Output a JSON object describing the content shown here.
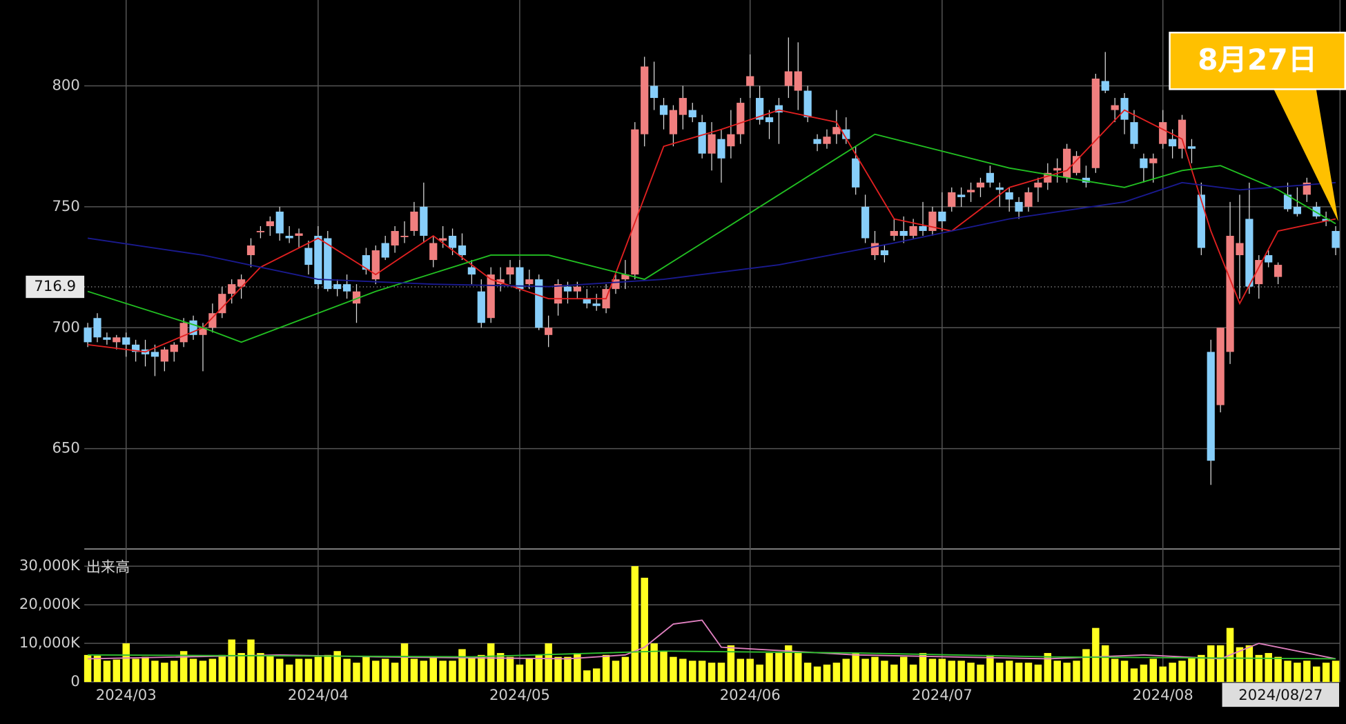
{
  "chart_data": {
    "type": "candlestick",
    "categories": [
      null,
      null,
      null,
      null,
      "2024/03",
      null,
      null,
      null,
      null,
      null,
      null,
      null,
      null,
      null,
      null,
      null,
      null,
      null,
      null,
      null,
      null,
      null,
      null,
      null,
      "2024/04",
      null,
      null,
      null,
      null,
      null,
      null,
      null,
      null,
      null,
      null,
      null,
      null,
      null,
      null,
      null,
      null,
      null,
      null,
      null,
      null,
      "2024/05",
      null,
      null,
      null,
      null,
      null,
      null,
      null,
      null,
      null,
      null,
      null,
      null,
      null,
      null,
      null,
      null,
      null,
      null,
      null,
      null,
      null,
      null,
      null,
      "2024/06",
      null,
      null,
      null,
      null,
      null,
      null,
      null,
      null,
      null,
      null,
      null,
      null,
      null,
      null,
      null,
      null,
      null,
      null,
      null,
      "2024/07",
      null,
      null,
      null,
      null,
      null,
      null,
      null,
      null,
      null,
      null,
      null,
      null,
      null,
      null,
      null,
      null,
      null,
      null,
      null,
      null,
      null,
      null,
      "2024/08",
      null,
      null,
      null,
      null,
      null,
      null,
      null,
      null,
      null,
      null,
      null,
      null,
      null,
      null,
      null,
      null,
      null,
      "2024/08/27"
    ],
    "candles": [
      [
        700,
        702,
        692,
        694
      ],
      [
        704,
        706,
        694,
        696
      ],
      [
        696,
        698,
        693,
        695
      ],
      [
        694,
        697,
        691,
        696
      ],
      [
        696,
        698,
        688,
        693
      ],
      [
        693,
        695,
        686,
        690
      ],
      [
        691,
        695,
        684,
        689
      ],
      [
        690,
        693,
        680,
        688
      ],
      [
        686,
        692,
        682,
        691
      ],
      [
        690,
        694,
        686,
        693
      ],
      [
        694,
        704,
        692,
        702
      ],
      [
        703,
        705,
        695,
        697
      ],
      [
        697,
        702,
        682,
        700
      ],
      [
        700,
        710,
        698,
        706
      ],
      [
        706,
        717,
        704,
        714
      ],
      [
        714,
        720,
        710,
        718
      ],
      [
        717,
        722,
        712,
        720
      ],
      [
        730,
        737,
        725,
        734
      ],
      [
        740,
        742,
        737,
        740
      ],
      [
        742,
        746,
        738,
        744
      ],
      [
        748,
        750,
        736,
        739
      ],
      [
        738,
        742,
        735,
        737
      ],
      [
        738,
        741,
        733,
        739
      ],
      [
        733,
        736,
        722,
        726
      ],
      [
        738,
        742,
        716,
        718
      ],
      [
        737,
        740,
        715,
        716
      ],
      [
        718,
        720,
        713,
        716
      ],
      [
        718,
        722,
        712,
        715
      ],
      [
        710,
        718,
        702,
        715
      ],
      [
        730,
        733,
        722,
        724
      ],
      [
        720,
        734,
        718,
        732
      ],
      [
        735,
        738,
        728,
        729
      ],
      [
        734,
        742,
        731,
        740
      ],
      [
        738,
        744,
        735,
        738
      ],
      [
        740,
        752,
        738,
        748
      ],
      [
        750,
        760,
        735,
        738
      ],
      [
        728,
        738,
        725,
        735
      ],
      [
        736,
        742,
        733,
        737
      ],
      [
        738,
        741,
        730,
        733
      ],
      [
        734,
        739,
        728,
        730
      ],
      [
        725,
        728,
        718,
        722
      ],
      [
        715,
        720,
        700,
        702
      ],
      [
        704,
        725,
        702,
        722
      ],
      [
        718,
        725,
        715,
        720
      ],
      [
        722,
        728,
        718,
        725
      ],
      [
        725,
        728,
        715,
        716
      ],
      [
        718,
        724,
        716,
        720
      ],
      [
        720,
        722,
        699,
        700
      ],
      [
        697,
        705,
        692,
        700
      ],
      [
        710,
        720,
        705,
        718
      ],
      [
        717,
        719,
        710,
        715
      ],
      [
        715,
        719,
        712,
        717
      ],
      [
        712,
        716,
        708,
        710
      ],
      [
        710,
        714,
        707,
        709
      ],
      [
        708,
        718,
        706,
        716
      ],
      [
        716,
        722,
        714,
        720
      ],
      [
        720,
        728,
        716,
        722
      ],
      [
        722,
        785,
        720,
        782
      ],
      [
        780,
        812,
        775,
        808
      ],
      [
        800,
        810,
        790,
        795
      ],
      [
        792,
        795,
        782,
        788
      ],
      [
        780,
        792,
        775,
        790
      ],
      [
        788,
        800,
        782,
        795
      ],
      [
        790,
        793,
        785,
        787
      ],
      [
        785,
        788,
        770,
        772
      ],
      [
        772,
        785,
        765,
        780
      ],
      [
        778,
        782,
        760,
        770
      ],
      [
        775,
        790,
        770,
        780
      ],
      [
        780,
        795,
        776,
        793
      ],
      [
        800,
        813,
        795,
        804
      ],
      [
        795,
        800,
        784,
        786
      ],
      [
        787,
        790,
        778,
        785
      ],
      [
        792,
        795,
        776,
        789
      ],
      [
        800,
        820,
        795,
        806
      ],
      [
        798,
        818,
        790,
        806
      ],
      [
        798,
        800,
        785,
        787
      ],
      [
        778,
        780,
        773,
        776
      ],
      [
        776,
        782,
        774,
        779
      ],
      [
        780,
        790,
        776,
        783
      ],
      [
        782,
        787,
        776,
        778
      ],
      [
        770,
        775,
        755,
        758
      ],
      [
        750,
        755,
        735,
        737
      ],
      [
        730,
        740,
        728,
        735
      ],
      [
        732,
        734,
        727,
        730
      ],
      [
        738,
        745,
        736,
        740
      ],
      [
        740,
        746,
        735,
        738
      ],
      [
        738,
        745,
        737,
        742
      ],
      [
        742,
        752,
        738,
        740
      ],
      [
        740,
        750,
        738,
        748
      ],
      [
        748,
        756,
        740,
        744
      ],
      [
        750,
        758,
        748,
        756
      ],
      [
        755,
        758,
        750,
        754
      ],
      [
        756,
        760,
        752,
        757
      ],
      [
        758,
        762,
        754,
        760
      ],
      [
        764,
        767,
        758,
        760
      ],
      [
        758,
        760,
        750,
        757
      ],
      [
        756,
        758,
        748,
        753
      ],
      [
        752,
        754,
        745,
        748
      ],
      [
        750,
        758,
        748,
        756
      ],
      [
        758,
        762,
        752,
        760
      ],
      [
        760,
        768,
        757,
        764
      ],
      [
        765,
        770,
        760,
        766
      ],
      [
        762,
        776,
        760,
        774
      ],
      [
        764,
        773,
        763,
        771
      ],
      [
        762,
        767,
        758,
        760
      ],
      [
        766,
        805,
        764,
        803
      ],
      [
        802,
        814,
        797,
        798
      ],
      [
        790,
        795,
        785,
        792
      ],
      [
        795,
        797,
        780,
        786
      ],
      [
        785,
        790,
        774,
        776
      ],
      [
        770,
        772,
        760,
        766
      ],
      [
        768,
        772,
        760,
        770
      ],
      [
        776,
        790,
        774,
        785
      ],
      [
        778,
        782,
        770,
        775
      ],
      [
        774,
        788,
        770,
        786
      ],
      [
        775,
        778,
        768,
        774
      ],
      [
        755,
        760,
        730,
        733
      ],
      [
        690,
        695,
        635,
        645
      ],
      [
        668,
        700,
        665,
        700
      ],
      [
        690,
        752,
        685,
        738
      ],
      [
        730,
        755,
        712,
        735
      ],
      [
        745,
        760,
        714,
        717
      ],
      [
        718,
        730,
        712,
        728
      ],
      [
        730,
        732,
        725,
        727
      ],
      [
        721,
        727,
        718,
        726
      ],
      [
        755,
        760,
        748,
        749
      ],
      [
        750,
        758,
        746,
        747
      ],
      [
        755,
        762,
        752,
        760
      ],
      [
        750,
        752,
        745,
        746
      ],
      [
        745,
        748,
        742,
        744
      ],
      [
        740,
        742,
        730,
        733
      ]
    ],
    "up_color": "#f07f7f",
    "down_color": "#87cefa",
    "ylim": [
      608.5,
      835.5
    ],
    "yticks": [
      650,
      700,
      750,
      800
    ],
    "grid": true,
    "reference_line": 716.9,
    "moving_averages": [
      {
        "color": "#e02020",
        "x": [
          0,
          6,
          12,
          18,
          24,
          30,
          36,
          42,
          48,
          54,
          60,
          66,
          72,
          78,
          84,
          90,
          96,
          102,
          108,
          114,
          117,
          120,
          124,
          130
        ],
        "values": [
          693,
          690,
          700,
          725,
          737,
          722,
          738,
          720,
          712,
          712,
          775,
          782,
          790,
          785,
          745,
          740,
          758,
          765,
          790,
          778,
          740,
          710,
          740,
          745
        ]
      },
      {
        "color": "#22c022",
        "x": [
          0,
          12,
          16,
          30,
          42,
          48,
          58,
          66,
          78,
          82,
          96,
          108,
          114,
          118,
          124,
          130
        ],
        "values": [
          715,
          700,
          694,
          715,
          730,
          730,
          720,
          740,
          770,
          780,
          766,
          758,
          765,
          767,
          757,
          743
        ]
      },
      {
        "color": "#1a1a90",
        "x": [
          0,
          12,
          24,
          36,
          48,
          60,
          72,
          84,
          96,
          108,
          114,
          120,
          130
        ],
        "values": [
          737,
          730,
          720,
          718,
          717,
          720,
          726,
          735,
          745,
          752,
          760,
          757,
          760
        ]
      }
    ],
    "volume": {
      "label": "出来高",
      "color": "#ffff20",
      "ylim": [
        0,
        34444
      ],
      "yticks": [
        0,
        {
          "value": 10000,
          "label": "10,000K"
        },
        {
          "value": 20000,
          "label": "20,000K"
        },
        {
          "value": 30000,
          "label": "30,000K"
        }
      ],
      "values": [
        7000,
        6800,
        5500,
        5800,
        10000,
        6000,
        6500,
        5500,
        5000,
        5500,
        8000,
        6000,
        5500,
        6000,
        7000,
        11000,
        7500,
        11000,
        7500,
        7000,
        6000,
        4500,
        6000,
        6000,
        6500,
        7000,
        8000,
        6000,
        5000,
        6500,
        5500,
        6000,
        5000,
        10000,
        6000,
        5500,
        6500,
        5500,
        5500,
        8500,
        6500,
        7000,
        10000,
        7500,
        6500,
        4500,
        6000,
        7000,
        10000,
        6500,
        6500,
        7500,
        3000,
        3500,
        7000,
        5500,
        6500,
        30000,
        27000,
        10000,
        8000,
        6500,
        6000,
        5500,
        5500,
        5000,
        5000,
        9500,
        6000,
        6000,
        4500,
        7500,
        7500,
        9500,
        7500,
        5000,
        4000,
        4500,
        5000,
        6000,
        7500,
        6000,
        6500,
        5500,
        4500,
        6500,
        4500,
        7500,
        6000,
        6000,
        5500,
        5500,
        5000,
        4500,
        7000,
        5000,
        5500,
        5000,
        5000,
        4500,
        7500,
        5500,
        5000,
        5500,
        8500,
        14000,
        9500,
        6000,
        5500,
        3500,
        4500,
        6000,
        4000,
        5000,
        5500,
        6500,
        7000,
        9500,
        9500,
        14000,
        9000,
        9500,
        7000,
        7500,
        6500,
        5500,
        5000,
        5500,
        4000,
        5000,
        5500
      ],
      "moving_averages": [
        {
          "color": "#e080c0",
          "x": [
            0,
            20,
            30,
            50,
            56,
            58,
            61,
            64,
            66,
            80,
            100,
            110,
            118,
            122,
            126,
            130
          ],
          "values": [
            6000,
            7000,
            6500,
            6000,
            7000,
            9000,
            15000,
            16000,
            9000,
            7000,
            6000,
            7000,
            6000,
            10000,
            8000,
            6000
          ]
        },
        {
          "color": "#30c030",
          "x": [
            0,
            40,
            60,
            80,
            100,
            130
          ],
          "values": [
            7000,
            6500,
            8000,
            7500,
            6500,
            6000
          ]
        }
      ]
    },
    "callout": "8月27日"
  }
}
